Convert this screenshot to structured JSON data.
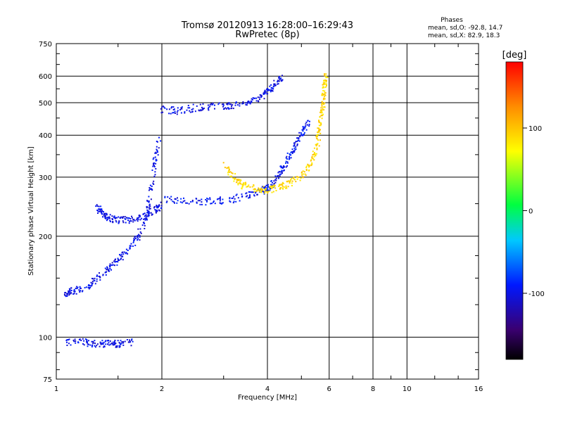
{
  "chart_data": {
    "type": "scatter",
    "title": "Tromsø 20120913 16:28:00–16:29:43",
    "subtitle": "RwPretec (8p)",
    "xlabel": "Frequency [MHz]",
    "ylabel": "Stationary phase Virtual Height [km]",
    "x_scale": "log",
    "y_scale": "log",
    "xlim": [
      1,
      16
    ],
    "ylim": [
      75,
      750
    ],
    "x_ticks": [
      1,
      2,
      4,
      6,
      8,
      10,
      16
    ],
    "y_ticks": [
      75,
      100,
      200,
      300,
      400,
      500,
      600,
      750
    ],
    "grid": true,
    "phases": {
      "heading": "Phases",
      "line_o": "mean, sd,O: -92.8, 14.7",
      "line_x": "mean, sd,X:  82.9, 18.3"
    },
    "colorbar": {
      "label": "[deg]",
      "ticks": [
        100,
        0,
        -100
      ],
      "range": [
        -180,
        180
      ]
    },
    "traces": [
      {
        "name_hint": "F2 O-mode",
        "phase": -100,
        "points": [
          [
            1.05,
            135
          ],
          [
            1.1,
            138
          ],
          [
            1.2,
            140
          ],
          [
            1.3,
            150
          ],
          [
            1.4,
            160
          ],
          [
            1.5,
            170
          ],
          [
            1.6,
            185
          ],
          [
            1.7,
            200
          ],
          [
            1.8,
            230
          ],
          [
            1.85,
            270
          ],
          [
            1.9,
            330
          ],
          [
            1.95,
            390
          ]
        ]
      },
      {
        "name_hint": "F1 cusp",
        "phase": -100,
        "points": [
          [
            1.3,
            245
          ],
          [
            1.35,
            235
          ],
          [
            1.4,
            228
          ],
          [
            1.5,
            224
          ],
          [
            1.6,
            225
          ],
          [
            1.75,
            230
          ],
          [
            1.9,
            240
          ],
          [
            2.0,
            250
          ]
        ]
      },
      {
        "name_hint": "F2 low O",
        "phase": -95,
        "points": [
          [
            2.0,
            260
          ],
          [
            2.3,
            255
          ],
          [
            2.7,
            255
          ],
          [
            3.1,
            258
          ],
          [
            3.5,
            265
          ],
          [
            3.8,
            272
          ],
          [
            4.0,
            280
          ],
          [
            4.2,
            295
          ],
          [
            4.4,
            320
          ],
          [
            4.6,
            350
          ],
          [
            4.8,
            380
          ],
          [
            5.0,
            410
          ],
          [
            5.2,
            440
          ]
        ]
      },
      {
        "name_hint": "F2 X-mode",
        "phase": 90,
        "points": [
          [
            3.0,
            330
          ],
          [
            3.2,
            300
          ],
          [
            3.4,
            285
          ],
          [
            3.7,
            278
          ],
          [
            4.0,
            276
          ],
          [
            4.3,
            280
          ],
          [
            4.6,
            290
          ],
          [
            5.0,
            305
          ],
          [
            5.3,
            330
          ],
          [
            5.5,
            370
          ],
          [
            5.6,
            420
          ],
          [
            5.7,
            470
          ],
          [
            5.75,
            520
          ],
          [
            5.8,
            560
          ],
          [
            5.85,
            610
          ]
        ]
      },
      {
        "name_hint": "second hop",
        "phase": -100,
        "points": [
          [
            2.0,
            480
          ],
          [
            2.2,
            475
          ],
          [
            2.5,
            485
          ],
          [
            2.8,
            490
          ],
          [
            3.1,
            490
          ],
          [
            3.5,
            500
          ],
          [
            3.8,
            520
          ],
          [
            4.0,
            545
          ],
          [
            4.2,
            575
          ],
          [
            4.4,
            600
          ]
        ]
      },
      {
        "name_hint": "E-region",
        "phase": -100,
        "points": [
          [
            1.05,
            97
          ],
          [
            1.2,
            97
          ],
          [
            1.3,
            96
          ],
          [
            1.4,
            96
          ],
          [
            1.5,
            96
          ],
          [
            1.65,
            97
          ]
        ]
      }
    ]
  }
}
